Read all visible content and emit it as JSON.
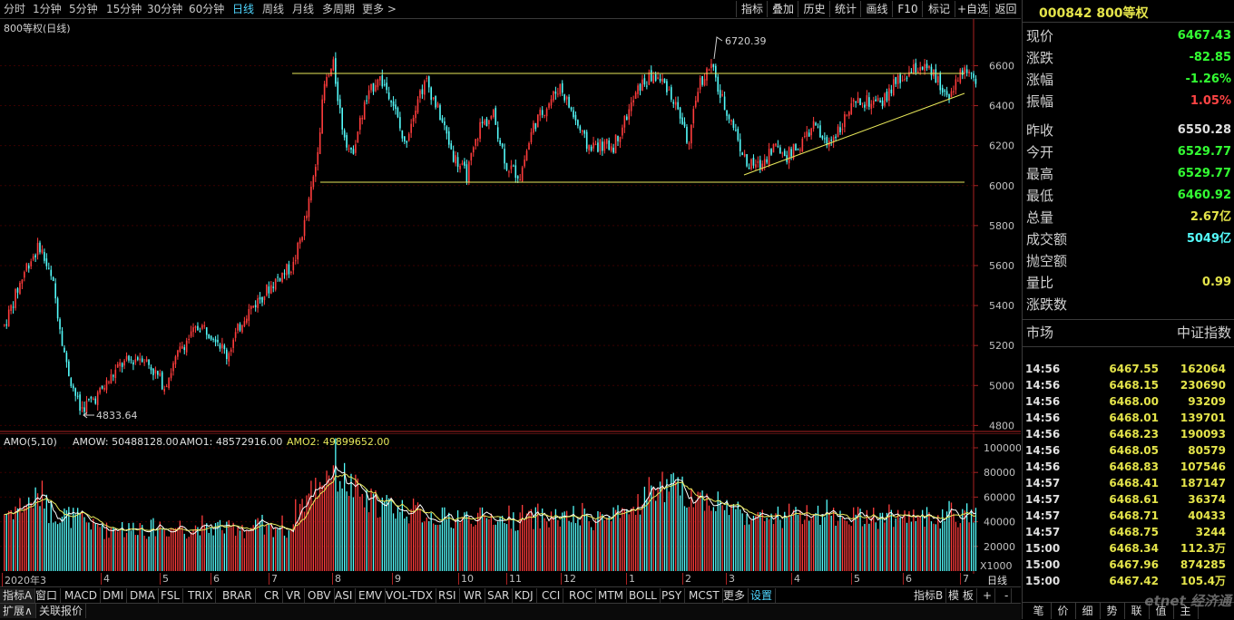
{
  "colors": {
    "up": "#ff3c3c",
    "down": "#54fcfc",
    "ma1": "#ffffff",
    "ma2": "#e8e85a",
    "grid": "#7a0000",
    "trend": "#e8e85a",
    "axis": "#aa2222"
  },
  "period_tabs": [
    "分时",
    "1分钟",
    "5分钟",
    "15分钟",
    "30分钟",
    "60分钟",
    "日线",
    "周线",
    "月线",
    "多周期",
    "更多 >"
  ],
  "active_period": "日线",
  "toolbar_buttons": [
    "指标",
    "叠加",
    "历史",
    "统计",
    "画线",
    "F10",
    "标记",
    "+自选",
    "返回"
  ],
  "chart_title": "800等权(日线)",
  "price_axis": [
    "6600",
    "6400",
    "6200",
    "6000",
    "5800",
    "5600",
    "5400",
    "5200",
    "5000",
    "4800"
  ],
  "high_label": "6720.39",
  "low_label": "4833.64",
  "amo": {
    "name": "AMO(5,10)",
    "amow": "AMOW: 50488128.00",
    "amo1": "AMO1: 48572916.00",
    "amo2": "AMO2: 49899652.00"
  },
  "vol_axis": [
    "100000",
    "80000",
    "60000",
    "40000",
    "20000"
  ],
  "vol_unit": "X1000",
  "months": [
    "2020年3",
    "4",
    "5",
    "6",
    "7",
    "8",
    "9",
    "10",
    "11",
    "12",
    "1",
    "2",
    "3",
    "4",
    "5",
    "6",
    "7"
  ],
  "period_label": "日线",
  "indicators": [
    "指标A",
    "窗口",
    "MACD",
    "DMI",
    "DMA",
    "FSL",
    "TRIX",
    "BRAR",
    "CR",
    "VR",
    "OBV",
    "ASI",
    "EMV",
    "VOL-TDX",
    "RSI",
    "WR",
    "SAR",
    "KDJ",
    "CCI",
    "ROC",
    "MTM",
    "BOLL",
    "PSY",
    "MCST",
    "更多",
    "设置"
  ],
  "active_indicator": "设置",
  "right_buttons": [
    "指标B",
    "模 板",
    "+",
    "-"
  ],
  "status": {
    "expand": "扩展∧",
    "related": "关联报价"
  },
  "stock": {
    "code": "000842",
    "name": "800等权"
  },
  "quotes": [
    {
      "label": "现价",
      "value": "6467.43",
      "color": "#33ff33"
    },
    {
      "label": "涨跌",
      "value": "-82.85",
      "color": "#33ff33"
    },
    {
      "label": "涨幅",
      "value": "-1.26%",
      "color": "#33ff33"
    },
    {
      "label": "振幅",
      "value": "1.05%",
      "color": "#ff4444"
    },
    {
      "label": "昨收",
      "value": "6550.28",
      "color": "#e0e0e0"
    },
    {
      "label": "今开",
      "value": "6529.77",
      "color": "#33ff33"
    },
    {
      "label": "最高",
      "value": "6529.77",
      "color": "#33ff33"
    },
    {
      "label": "最低",
      "value": "6460.92",
      "color": "#33ff33"
    },
    {
      "label": "总量",
      "value": "2.67亿",
      "color": "#e4e44a"
    },
    {
      "label": "成交额",
      "value": "5049亿",
      "color": "#54fcfc"
    },
    {
      "label": "抛空额",
      "value": "",
      "color": "#e0e0e0"
    },
    {
      "label": "量比",
      "value": "0.99",
      "color": "#e4e44a"
    },
    {
      "label": "涨跌数",
      "value": "",
      "color": "#e0e0e0"
    }
  ],
  "market": {
    "label": "市场",
    "value": "中证指数"
  },
  "ticks": [
    {
      "time": "14:56",
      "price": "6467.55",
      "vol": "162064"
    },
    {
      "time": "14:56",
      "price": "6468.15",
      "vol": "230690"
    },
    {
      "time": "14:56",
      "price": "6468.00",
      "vol": "93209"
    },
    {
      "time": "14:56",
      "price": "6468.01",
      "vol": "139701"
    },
    {
      "time": "14:56",
      "price": "6468.23",
      "vol": "190093"
    },
    {
      "time": "14:56",
      "price": "6468.05",
      "vol": "80579"
    },
    {
      "time": "14:56",
      "price": "6468.83",
      "vol": "107546"
    },
    {
      "time": "14:57",
      "price": "6468.41",
      "vol": "187147"
    },
    {
      "time": "14:57",
      "price": "6468.61",
      "vol": "36374"
    },
    {
      "time": "14:57",
      "price": "6468.71",
      "vol": "40433"
    },
    {
      "time": "14:57",
      "price": "6468.75",
      "vol": "3244"
    },
    {
      "time": "15:00",
      "price": "6468.34",
      "vol": "112.3万"
    },
    {
      "time": "15:00",
      "price": "6467.96",
      "vol": "874285"
    },
    {
      "time": "15:00",
      "price": "6467.42",
      "vol": "105.4万"
    }
  ],
  "bottom_tabs": [
    "笔",
    "价",
    "细",
    "势",
    "联",
    "值",
    "主"
  ],
  "watermark": "etnet 经济通"
}
